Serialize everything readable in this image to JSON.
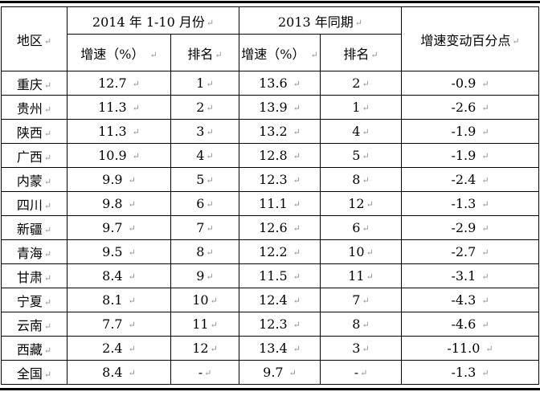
{
  "page": {
    "background": "#ffffff",
    "border_color": "#000000",
    "text_color": "#000000",
    "mark": "↵",
    "mark_color": "#909090"
  },
  "table": {
    "header": {
      "region": "地区",
      "period_2014": "2014 年 1-10 月份",
      "period_2013": "2013 年同期",
      "growth": "增速（%）",
      "rank": "排名",
      "change": "增速变动百分点"
    },
    "rows": [
      {
        "region": "重庆",
        "growth_2014": "12.7",
        "rank_2014": "1",
        "growth_2013": "13.6",
        "rank_2013": "2",
        "change": "-0.9"
      },
      {
        "region": "贵州",
        "growth_2014": "11.3",
        "rank_2014": "2",
        "growth_2013": "13.9",
        "rank_2013": "1",
        "change": "-2.6"
      },
      {
        "region": "陕西",
        "growth_2014": "11.3",
        "rank_2014": "3",
        "growth_2013": "13.2",
        "rank_2013": "4",
        "change": "-1.9"
      },
      {
        "region": "广西",
        "growth_2014": "10.9",
        "rank_2014": "4",
        "growth_2013": "12.8",
        "rank_2013": "5",
        "change": "-1.9"
      },
      {
        "region": "内蒙",
        "growth_2014": "9.9",
        "rank_2014": "5",
        "growth_2013": "12.3",
        "rank_2013": "8",
        "change": "-2.4"
      },
      {
        "region": "四川",
        "growth_2014": "9.8",
        "rank_2014": "6",
        "growth_2013": "11.1",
        "rank_2013": "12",
        "change": "-1.3"
      },
      {
        "region": "新疆",
        "growth_2014": "9.7",
        "rank_2014": "7",
        "growth_2013": "12.6",
        "rank_2013": "6",
        "change": "-2.9"
      },
      {
        "region": "青海",
        "growth_2014": "9.5",
        "rank_2014": "8",
        "growth_2013": "12.2",
        "rank_2013": "10",
        "change": "-2.7"
      },
      {
        "region": "甘肃",
        "growth_2014": "8.4",
        "rank_2014": "9",
        "growth_2013": "11.5",
        "rank_2013": "11",
        "change": "-3.1"
      },
      {
        "region": "宁夏",
        "growth_2014": "8.1",
        "rank_2014": "10",
        "growth_2013": "12.4",
        "rank_2013": "7",
        "change": "-4.3"
      },
      {
        "region": "云南",
        "growth_2014": "7.7",
        "rank_2014": "11",
        "growth_2013": "12.3",
        "rank_2013": "8",
        "change": "-4.6"
      },
      {
        "region": "西藏",
        "growth_2014": "2.4",
        "rank_2014": "12",
        "growth_2013": "13.4",
        "rank_2013": "3",
        "change": "-11.0"
      },
      {
        "region": "全国",
        "growth_2014": "8.4",
        "rank_2014": "-",
        "growth_2013": "9.7",
        "rank_2013": "-",
        "change": "-1.3"
      }
    ]
  }
}
